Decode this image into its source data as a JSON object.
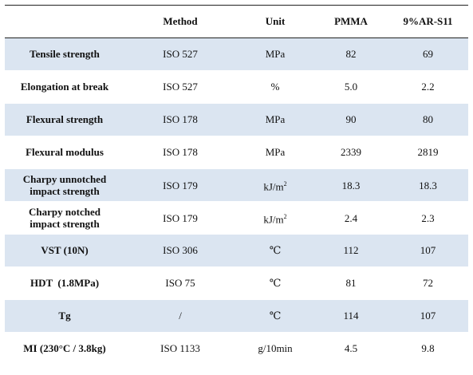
{
  "table": {
    "headers": [
      "",
      "Method",
      "Unit",
      "PMMA",
      "9%AR-S11"
    ],
    "rows": [
      {
        "property": "Tensile strength",
        "method": "ISO 527",
        "unit": "MPa",
        "pmma": "82",
        "ar": "69"
      },
      {
        "property": "Elongation at break",
        "method": "ISO 527",
        "unit": "%",
        "pmma": "5.0",
        "ar": "2.2"
      },
      {
        "property": "Flexural strength",
        "method": "ISO 178",
        "unit": "MPa",
        "pmma": "90",
        "ar": "80"
      },
      {
        "property": "Flexural modulus",
        "method": "ISO 178",
        "unit": "MPa",
        "pmma": "2339",
        "ar": "2819"
      },
      {
        "property_line1": "Charpy unnotched",
        "property_line2": "impact strength",
        "method": "ISO 179",
        "unit_base": "kJ/m",
        "unit_sup": "2",
        "pmma": "18.3",
        "ar": "18.3"
      },
      {
        "property_line1": "Charpy notched",
        "property_line2": "impact strength",
        "method": "ISO 179",
        "unit_base": "kJ/m",
        "unit_sup": "2",
        "pmma": "2.4",
        "ar": "2.3"
      },
      {
        "property": "VST (10N)",
        "method": "ISO 306",
        "unit": "℃",
        "pmma": "112",
        "ar": "107"
      },
      {
        "property": "HDT  (1.8MPa)",
        "method": "ISO 75",
        "unit": "℃",
        "pmma": "81",
        "ar": "72"
      },
      {
        "property": "Tg",
        "method": "/",
        "unit": "℃",
        "pmma": "114",
        "ar": "107"
      },
      {
        "property": "MI (230°C / 3.8kg)",
        "method": "ISO 1133",
        "unit": "g/10min",
        "pmma": "4.5",
        "ar": "9.8"
      }
    ]
  },
  "colors": {
    "shade": "#dbe5f1",
    "rule": "#222222"
  }
}
